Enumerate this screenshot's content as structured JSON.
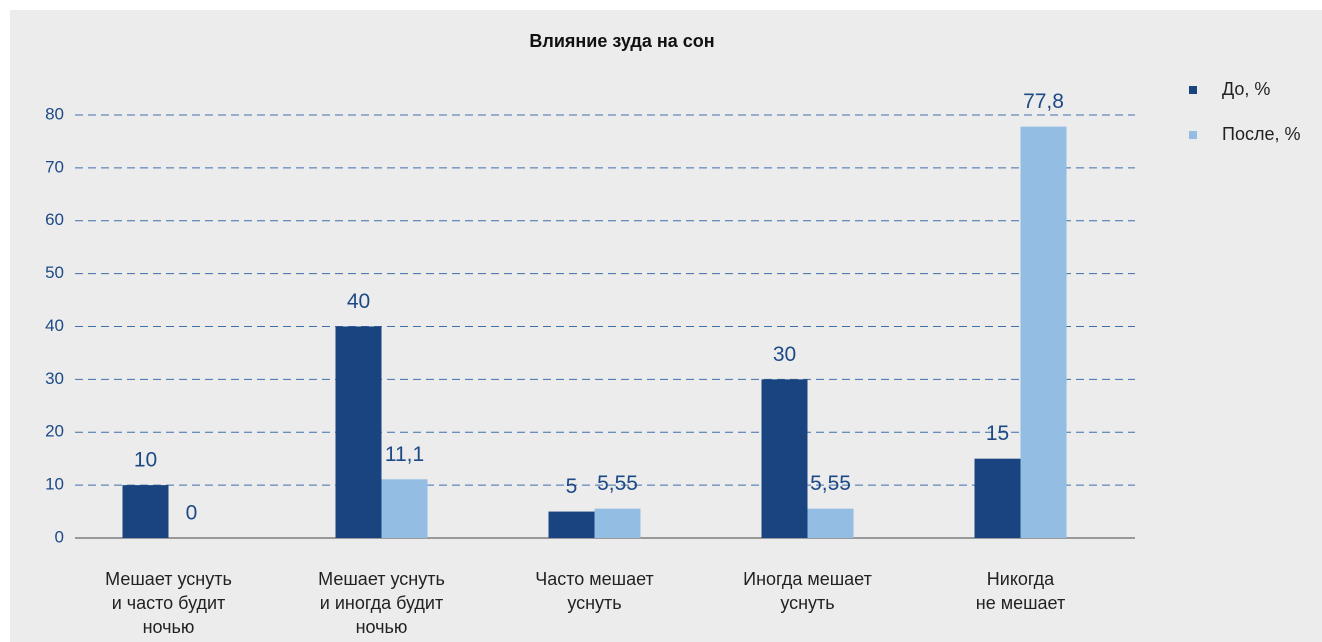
{
  "chart_data": {
    "type": "bar",
    "title": "Влияние зуда на сон",
    "categories": [
      "Мешает уснуть\nи часто будит\nночью",
      "Мешает уснуть\nи иногда будит\nночью",
      "Часто мешает\nуснуть",
      "Иногда мешает\nуснуть",
      "Никогда\nне мешает"
    ],
    "series": [
      {
        "name": "До, %",
        "color": "#1a4480",
        "values": [
          10,
          40,
          5,
          30,
          15
        ],
        "value_labels": [
          "10",
          "40",
          "5",
          "30",
          "15"
        ]
      },
      {
        "name": "После, %",
        "color": "#93bde3",
        "values": [
          0,
          11.1,
          5.55,
          5.55,
          77.8
        ],
        "value_labels": [
          "0",
          "11,1",
          "5,55",
          "5,55",
          "77,8"
        ]
      }
    ],
    "ylim": [
      0,
      80
    ],
    "yticks": [
      0,
      10,
      20,
      30,
      40,
      50,
      60,
      70,
      80
    ],
    "grid": true,
    "legend": "top-right"
  }
}
